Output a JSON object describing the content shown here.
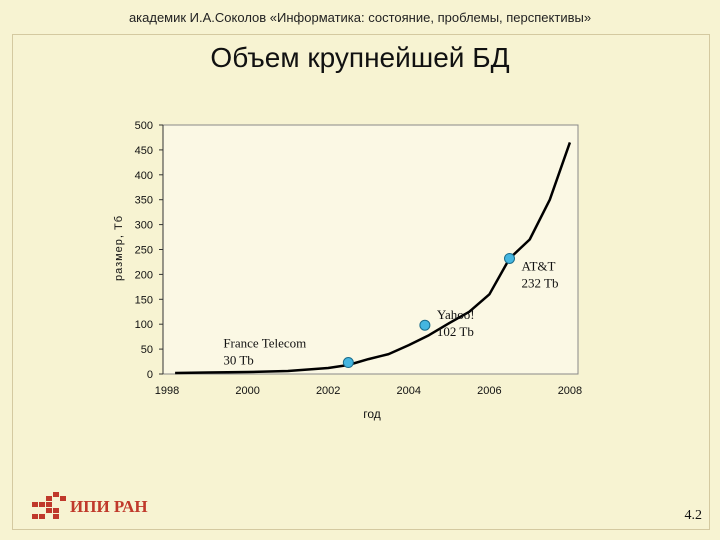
{
  "header": {
    "text": "академик И.А.Соколов «Информатика: состояние, проблемы, перспективы»"
  },
  "slide": {
    "title": "Объем крупнейшей БД",
    "page_number": "4.2"
  },
  "logo": {
    "text": "ИПИ РАН"
  },
  "chart_data": {
    "type": "line",
    "title": "Объем крупнейшей БД",
    "xlabel": "год",
    "ylabel": "размер, Тб",
    "xlim": [
      1997.9,
      2008.2
    ],
    "ylim": [
      0,
      500
    ],
    "x_ticks": [
      "1998",
      "2000",
      "2002",
      "2004",
      "2006",
      "2008"
    ],
    "y_ticks": [
      "0",
      "50",
      "100",
      "150",
      "200",
      "250",
      "300",
      "350",
      "400",
      "450",
      "500"
    ],
    "series": [
      {
        "x": [
          1998.2,
          1999,
          2000,
          2001,
          2002,
          2002.5,
          2003,
          2003.5,
          2004,
          2004.5,
          2005,
          2005.5,
          2006,
          2006.5,
          2007,
          2007.5,
          2008
        ],
        "y": [
          2,
          3,
          4,
          6,
          12,
          18,
          30,
          40,
          58,
          78,
          102,
          125,
          160,
          232,
          270,
          350,
          465
        ]
      }
    ],
    "annotations": [
      {
        "x": 2002.5,
        "y": 23,
        "lines": [
          "France Telecom",
          "30 Tb"
        ]
      },
      {
        "x": 2004.4,
        "y": 98,
        "lines": [
          "Yahoo!",
          "102 Tb"
        ]
      },
      {
        "x": 2006.5,
        "y": 232,
        "lines": [
          "AT&T",
          "232 Tb"
        ]
      }
    ],
    "grid": false
  }
}
